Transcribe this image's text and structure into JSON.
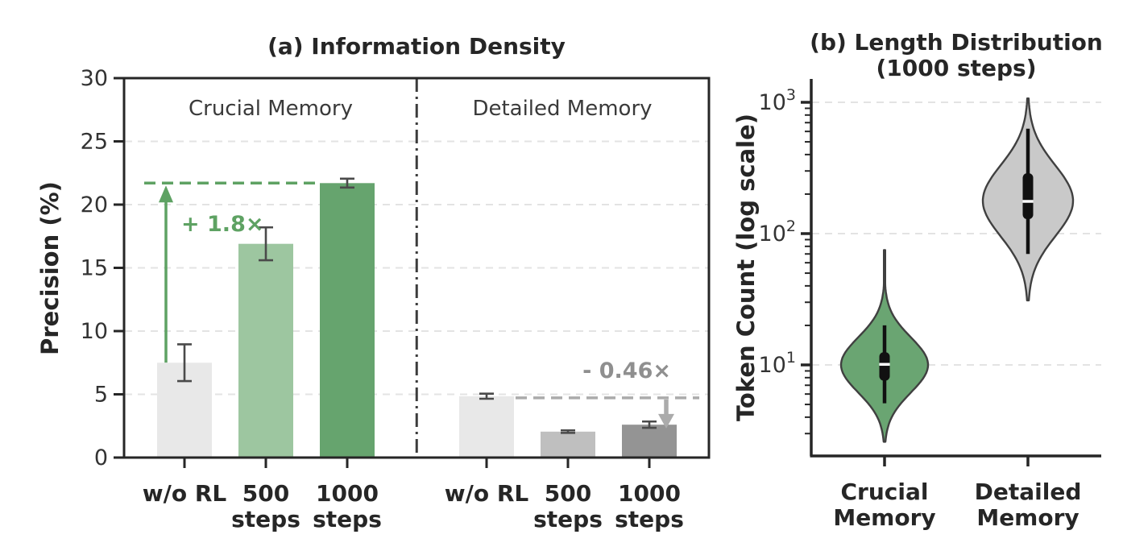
{
  "panel_a": {
    "title": "(a) Information Density",
    "ylabel": "Precision (%)",
    "section_labels": {
      "crucial": "Crucial Memory",
      "detailed": "Detailed Memory"
    },
    "annotation_crucial": "+ 1.8×",
    "annotation_detailed": "- 0.46×"
  },
  "panel_b": {
    "title_line1": "(b) Length Distribution",
    "title_line2": "(1000 steps)",
    "ylabel": "Token Count (log scale)"
  },
  "colors": {
    "bar_light_gray": "#e8e8e8",
    "bar_mid_gray": "#bfbfbf",
    "bar_dark_gray": "#949494",
    "bar_light_green": "#9dc6a0",
    "bar_green": "#66a46e",
    "violin_green": "#6aa572",
    "violin_gray": "#c9c9c9",
    "violin_outline": "#404040",
    "accent_green": "#5ea263",
    "accent_gray": "#ababab",
    "annotation_green_text": "#5ea263",
    "annotation_gray_text": "#8f8f8f",
    "spine": "#262626",
    "grid": "#e3e3e3",
    "error_bar": "#4a4a4a",
    "divider": "#3c3c3c",
    "box": "#111111",
    "median": "#ffffff",
    "background": "#ffffff"
  },
  "chart_data": [
    {
      "type": "bar",
      "title": "(a) Information Density",
      "ylabel": "Precision (%)",
      "ylim": [
        0,
        30
      ],
      "yticks": [
        0,
        5,
        10,
        15,
        20,
        25,
        30
      ],
      "grid": true,
      "categories": [
        "w/o RL",
        "500\nsteps",
        "1000\nsteps"
      ],
      "groups": [
        {
          "name": "Crucial Memory",
          "values": [
            7.5,
            16.9,
            21.7
          ],
          "errors": [
            1.45,
            1.3,
            0.35
          ],
          "colors": [
            "#e8e8e8",
            "#9dc6a0",
            "#66a46e"
          ],
          "annotation": {
            "text": "+ 1.8×",
            "ref_value": 21.7
          }
        },
        {
          "name": "Detailed Memory",
          "values": [
            4.85,
            2.05,
            2.6
          ],
          "errors": [
            0.2,
            0.1,
            0.25
          ],
          "colors": [
            "#e8e8e8",
            "#bfbfbf",
            "#949494"
          ],
          "annotation": {
            "text": "- 0.46×",
            "ref_value": 4.72
          }
        }
      ]
    },
    {
      "type": "violin",
      "title": "(b) Length Distribution (1000 steps)",
      "ylabel": "Token Count (log scale)",
      "yscale": "log",
      "yticks": [
        10,
        100,
        1000
      ],
      "grid": true,
      "categories": [
        "Crucial\nMemory",
        "Detailed\nMemory"
      ],
      "violins": [
        {
          "label": "Crucial Memory",
          "color": "#6aa572",
          "min": 2.6,
          "max": 75,
          "whisker_low": 5.1,
          "whisker_high": 20,
          "q1": 7.6,
          "median": 10.1,
          "q3": 12.5,
          "log_mode": 1.0,
          "log_sigma": 0.21
        },
        {
          "label": "Detailed Memory",
          "color": "#c9c9c9",
          "min": 31,
          "max": 1070,
          "whisker_low": 70,
          "whisker_high": 630,
          "q1": 129,
          "median": 176,
          "q3": 288,
          "log_mode": 2.25,
          "log_sigma": 0.27
        }
      ]
    }
  ]
}
